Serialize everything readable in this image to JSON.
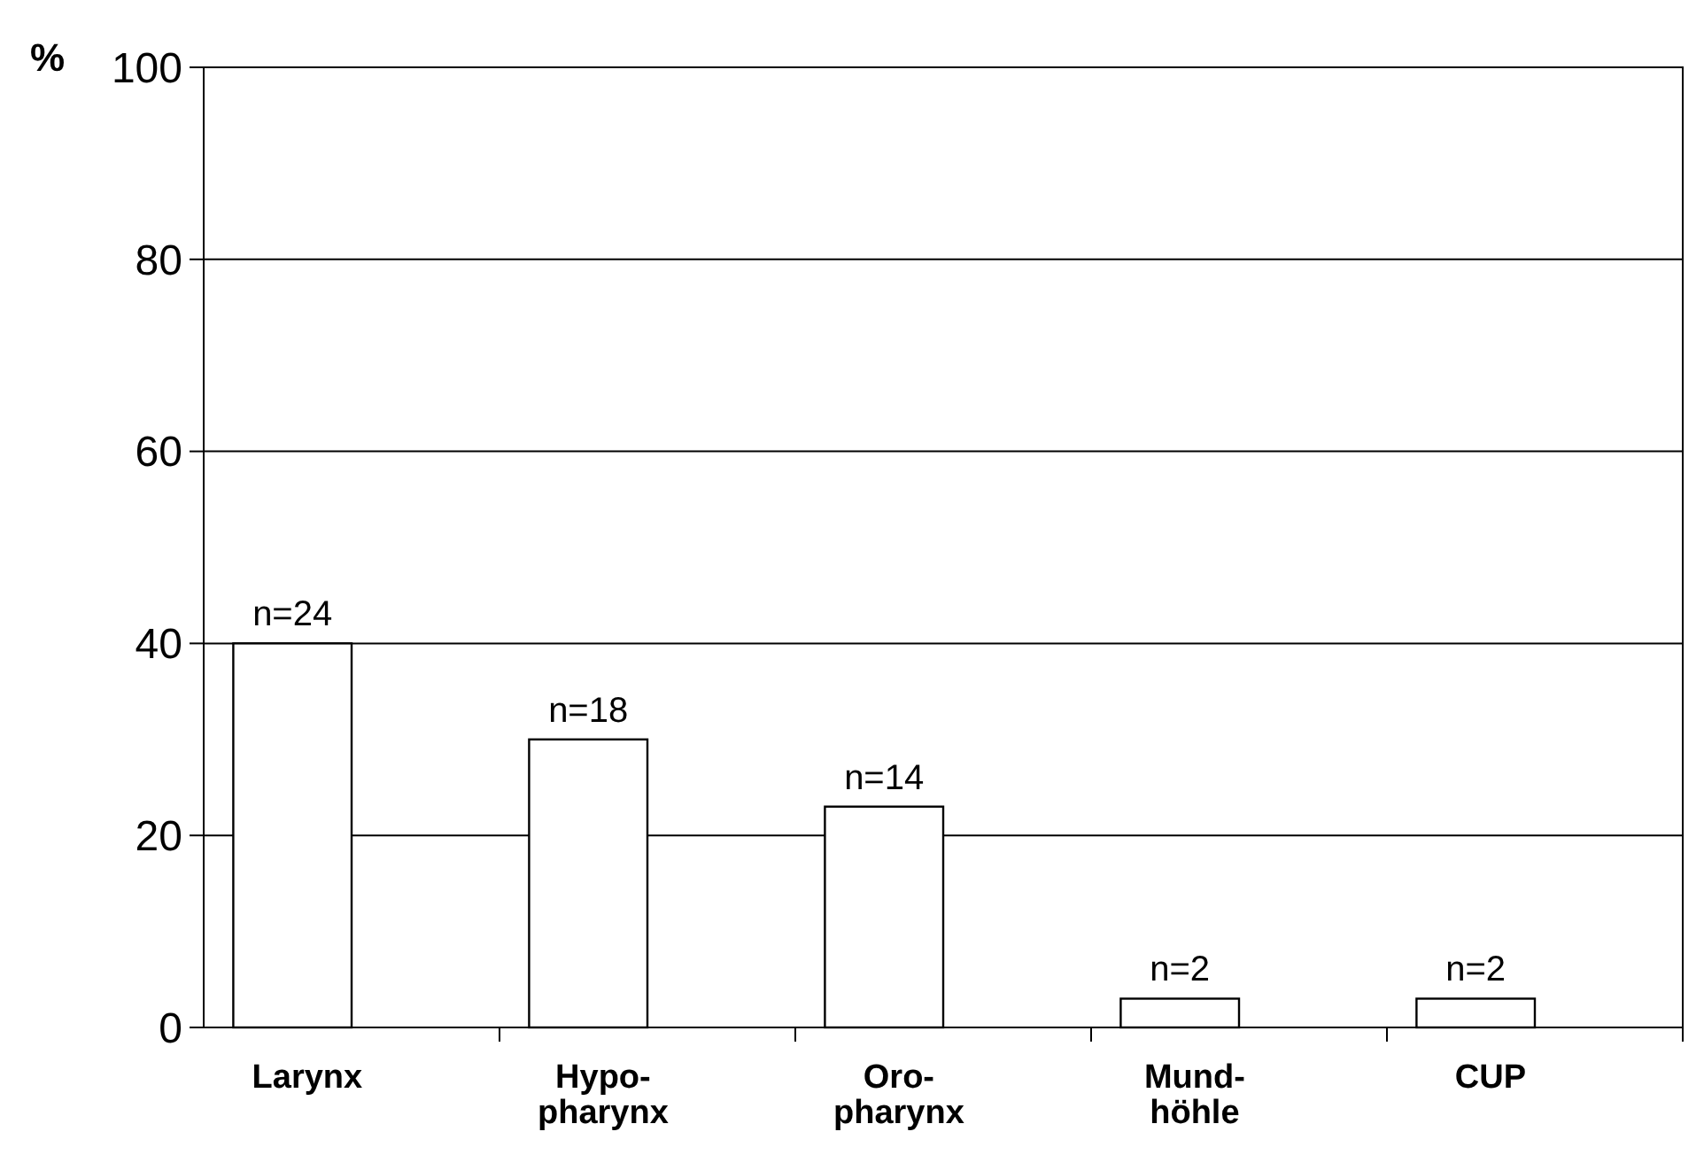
{
  "chart_data": {
    "type": "bar",
    "ylabel": "%",
    "categories": [
      "Larynx",
      "Hypo-\npharynx",
      "Oro-\npharynx",
      "Mund-\nhöhle",
      "CUP"
    ],
    "values": [
      40,
      30,
      23,
      3,
      3
    ],
    "annotations": [
      {
        "text": "n=24",
        "x": "Larynx",
        "y": 40
      },
      {
        "text": "n=18",
        "x": "Hypo-\npharynx",
        "y": 30
      },
      {
        "text": "n=14",
        "x": "Oro-\npharynx",
        "y": 23
      },
      {
        "text": "n=2",
        "x": "Mund-\nhöhle",
        "y": 3
      },
      {
        "text": "n=2",
        "x": "CUP",
        "y": 3
      }
    ],
    "color": "#ffffff",
    "ylim": [
      0,
      100
    ],
    "yticks": [
      0,
      20,
      40,
      60,
      80,
      100
    ],
    "grid": "y"
  }
}
